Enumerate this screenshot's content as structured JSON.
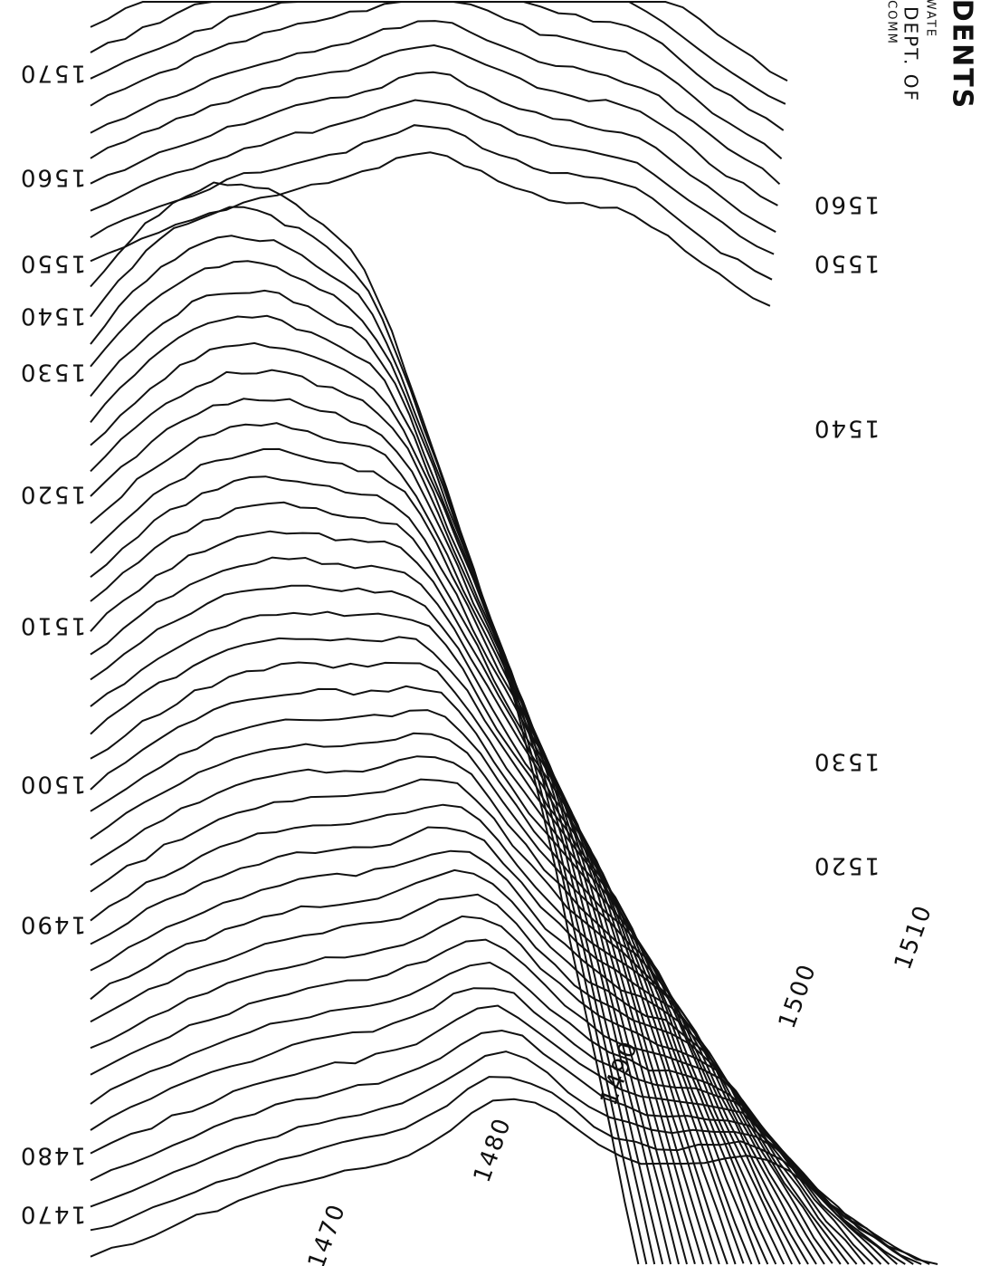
{
  "title_block": {
    "lines": [
      "COMM",
      "DEPT. OF",
      "WATE",
      "DENTS"
    ]
  },
  "labels": {
    "left": [
      "1570",
      "1560",
      "1550",
      "1540",
      "1530",
      "1520",
      "1510",
      "1500",
      "1490",
      "1480",
      "1470"
    ],
    "right": [
      "1560",
      "1550",
      "1540",
      "1530",
      "1520"
    ],
    "bottom": [
      "1470",
      "1480",
      "1490",
      "1500",
      "1510"
    ]
  }
}
